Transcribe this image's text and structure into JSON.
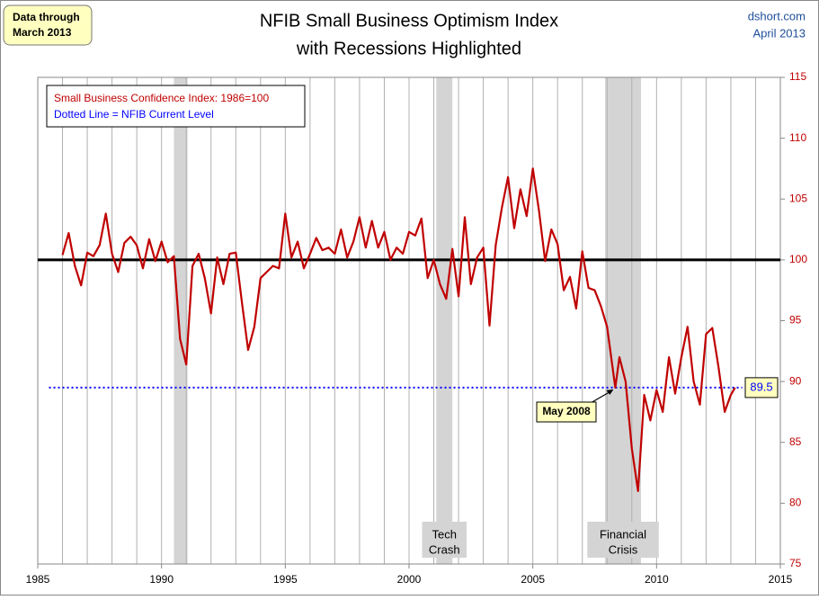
{
  "chart_data": {
    "type": "line",
    "title": "NFIB Small Business Optimism Index",
    "subtitle": "with Recessions Highlighted",
    "note": [
      "Data through",
      "March 2013"
    ],
    "source": [
      "dshort.com",
      "April 2013"
    ],
    "x": [
      1986.0,
      1986.25,
      1986.5,
      1986.75,
      1987.0,
      1987.25,
      1987.5,
      1987.75,
      1988.0,
      1988.25,
      1988.5,
      1988.75,
      1989.0,
      1989.25,
      1989.5,
      1989.75,
      1990.0,
      1990.25,
      1990.5,
      1990.75,
      1991.0,
      1991.25,
      1991.5,
      1991.75,
      1992.0,
      1992.25,
      1992.5,
      1992.75,
      1993.0,
      1993.25,
      1993.5,
      1993.75,
      1994.0,
      1994.25,
      1994.5,
      1994.75,
      1995.0,
      1995.25,
      1995.5,
      1995.75,
      1996.0,
      1996.25,
      1996.5,
      1996.75,
      1997.0,
      1997.25,
      1997.5,
      1997.75,
      1998.0,
      1998.25,
      1998.5,
      1998.75,
      1999.0,
      1999.25,
      1999.5,
      1999.75,
      2000.0,
      2000.25,
      2000.5,
      2000.75,
      2001.0,
      2001.25,
      2001.5,
      2001.75,
      2002.0,
      2002.25,
      2002.5,
      2002.75,
      2003.0,
      2003.25,
      2003.5,
      2003.75,
      2004.0,
      2004.25,
      2004.5,
      2004.75,
      2005.0,
      2005.25,
      2005.5,
      2005.75,
      2006.0,
      2006.25,
      2006.5,
      2006.75,
      2007.0,
      2007.25,
      2007.5,
      2007.75,
      2008.0,
      2008.33,
      2008.5,
      2008.75,
      2009.0,
      2009.25,
      2009.5,
      2009.75,
      2010.0,
      2010.25,
      2010.5,
      2010.75,
      2011.0,
      2011.25,
      2011.5,
      2011.75,
      2012.0,
      2012.25,
      2012.5,
      2012.75,
      2013.0,
      2013.17
    ],
    "series": [
      {
        "name": "Small Business Confidence Index: 1986=100",
        "color": "#c00000",
        "values": [
          100.4,
          102.2,
          99.5,
          97.9,
          100.6,
          100.3,
          101.2,
          103.8,
          100.5,
          99.0,
          101.4,
          101.9,
          101.2,
          99.3,
          101.7,
          99.9,
          101.5,
          99.8,
          100.3,
          93.5,
          91.4,
          99.5,
          100.5,
          98.5,
          95.6,
          100.2,
          98.0,
          100.5,
          100.6,
          96.5,
          92.6,
          94.5,
          98.5,
          99.0,
          99.5,
          99.3,
          103.8,
          100.2,
          101.5,
          99.3,
          100.5,
          101.8,
          100.8,
          101.0,
          100.5,
          102.5,
          100.2,
          101.5,
          103.5,
          101.0,
          103.2,
          101.0,
          102.3,
          100.0,
          101.0,
          100.5,
          102.3,
          102.0,
          103.4,
          98.5,
          100.0,
          98.0,
          96.8,
          100.9,
          97.0,
          103.5,
          98.0,
          100.2,
          101.0,
          94.6,
          101.2,
          104.3,
          106.8,
          102.6,
          105.8,
          103.6,
          107.5,
          104.0,
          99.9,
          102.5,
          101.3,
          97.5,
          98.6,
          96.0,
          100.7,
          97.7,
          97.5,
          96.2,
          94.5,
          89.5,
          92.0,
          90.0,
          84.5,
          81.0,
          88.9,
          86.8,
          89.3,
          87.5,
          92.0,
          89.0,
          92.0,
          94.5,
          90.0,
          88.1,
          93.9,
          94.4,
          91.2,
          87.5,
          88.9,
          89.5
        ]
      }
    ],
    "baseline": 100,
    "reference_line": {
      "label": "Dotted Line = NFIB Current Level",
      "value": 89.5,
      "color": "#0000ff"
    },
    "recessions": [
      {
        "start": 1990.5,
        "end": 1991.05
      },
      {
        "start": 2001.1,
        "end": 2001.75,
        "label": [
          "Tech",
          "Crash"
        ]
      },
      {
        "start": 2007.92,
        "end": 2009.37,
        "label": [
          "Financial",
          "Crisis"
        ]
      }
    ],
    "callout": {
      "text": "May 2008",
      "x": 2008.33,
      "y": 89.5
    },
    "xlim": [
      1985,
      2015
    ],
    "xticks": [
      1985,
      1990,
      1995,
      2000,
      2005,
      2010,
      2015
    ],
    "ylim": [
      75,
      115
    ],
    "yticks": [
      75,
      80,
      85,
      90,
      95,
      100,
      105,
      110,
      115
    ],
    "grid": {
      "x_every": 1
    }
  }
}
